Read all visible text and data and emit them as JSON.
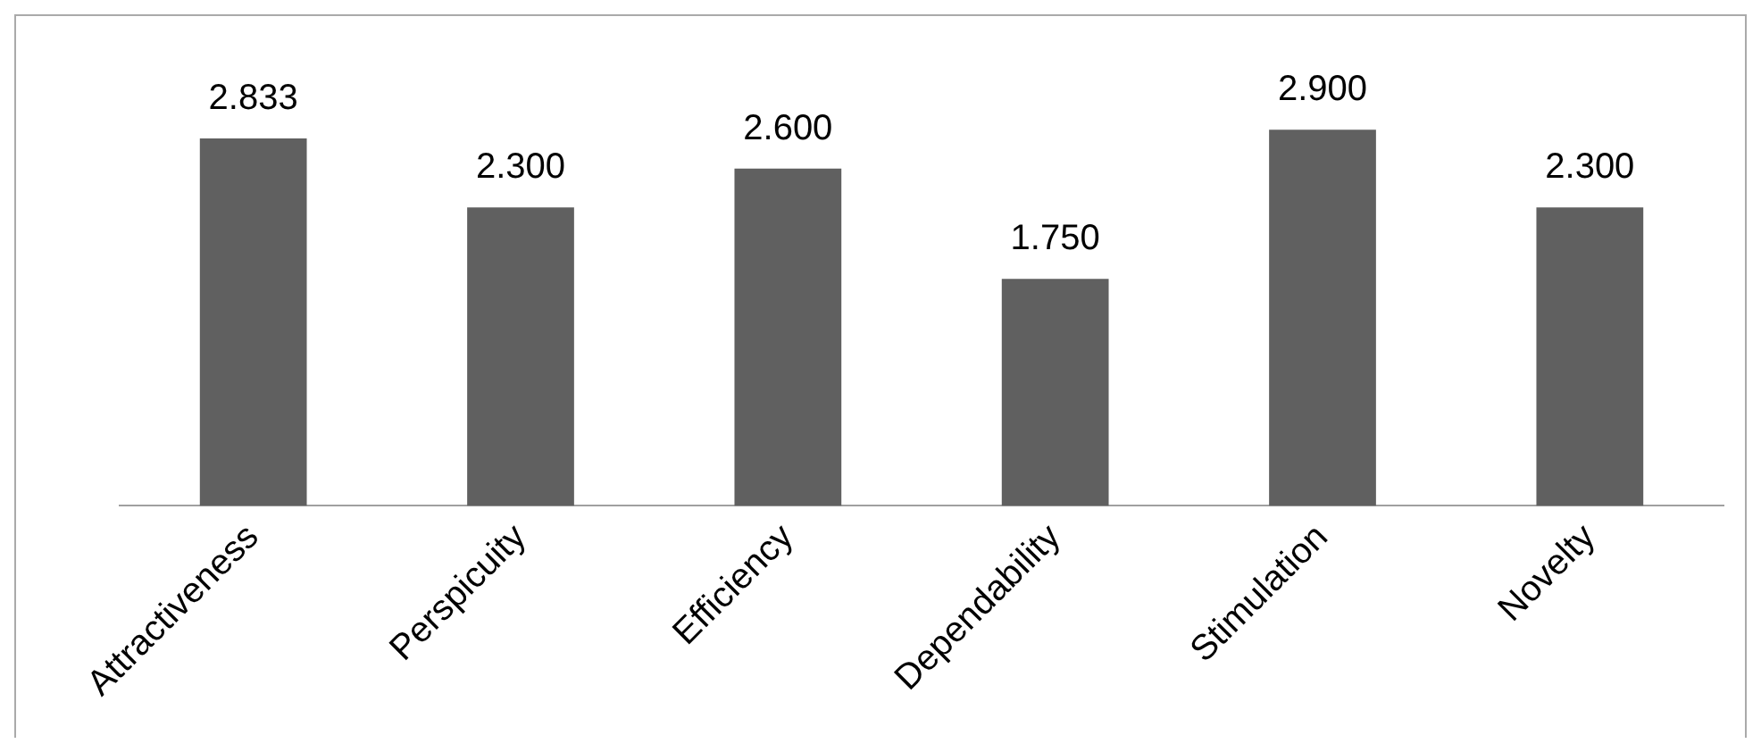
{
  "chart_data": {
    "type": "bar",
    "categories": [
      "Attractiveness",
      "Perspicuity",
      "Efficiency",
      "Dependability",
      "Stimulation",
      "Novelty"
    ],
    "values": [
      2.833,
      2.3,
      2.6,
      1.75,
      2.9,
      2.3
    ],
    "color": "#606060",
    "data_labels": true,
    "value_labels": [
      "2.833",
      "2.300",
      "2.600",
      "1.750",
      "2.900",
      "2.300"
    ],
    "grid": false,
    "legend": false,
    "relative": false
  }
}
